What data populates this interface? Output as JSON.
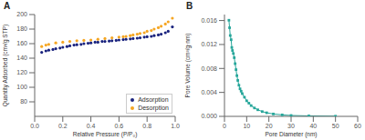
{
  "chart_data": [
    {
      "type": "scatter",
      "title": "A",
      "x_label": "Relative Pressure (P/P₀)",
      "y_label": "Quantity Adsorbed (cm³/g STP)",
      "xlim": [
        0.0,
        1.0
      ],
      "xticks": [
        {
          "value": 0.0,
          "label": "0.0"
        },
        0.2,
        0.4,
        0.6,
        0.8,
        {
          "value": 1.0,
          "label": "1.0"
        }
      ],
      "ylim": [
        60,
        200
      ],
      "yticks": [
        80,
        100,
        120,
        140,
        160,
        180,
        200
      ],
      "grid": false,
      "legend": "lower right",
      "series": [
        {
          "name": "Adsorption",
          "color": "#1a237e",
          "marker": "circle",
          "x": [
            0.05,
            0.08,
            0.1,
            0.13,
            0.15,
            0.18,
            0.2,
            0.23,
            0.25,
            0.28,
            0.3,
            0.33,
            0.35,
            0.38,
            0.4,
            0.43,
            0.45,
            0.48,
            0.5,
            0.53,
            0.55,
            0.58,
            0.6,
            0.63,
            0.65,
            0.68,
            0.7,
            0.73,
            0.75,
            0.78,
            0.8,
            0.83,
            0.85,
            0.88,
            0.9,
            0.93,
            0.95,
            0.98
          ],
          "values": [
            148,
            150,
            151,
            152,
            153,
            154,
            155,
            156,
            157,
            158,
            158.5,
            159,
            160,
            160.5,
            161,
            162,
            162,
            163,
            163,
            163.5,
            164,
            164.5,
            165,
            165.5,
            166,
            166.5,
            167,
            167.5,
            168,
            169,
            169.5,
            170,
            171,
            172,
            173,
            175,
            177,
            183
          ]
        },
        {
          "name": "Desorption",
          "color": "#f5a623",
          "marker": "circle",
          "x": [
            0.98,
            0.95,
            0.93,
            0.9,
            0.88,
            0.85,
            0.83,
            0.8,
            0.78,
            0.75,
            0.73,
            0.7,
            0.68,
            0.65,
            0.63,
            0.6,
            0.55,
            0.5,
            0.45,
            0.4,
            0.35,
            0.3,
            0.25,
            0.2,
            0.15,
            0.1,
            0.08,
            0.05
          ],
          "values": [
            195,
            190,
            187,
            184,
            182,
            180,
            178,
            177,
            175,
            174,
            173,
            172,
            171,
            170,
            169.5,
            169,
            168,
            167,
            166,
            165,
            164.5,
            164,
            163,
            162,
            161,
            159,
            158,
            156
          ]
        }
      ]
    },
    {
      "type": "line",
      "title": "B",
      "x_label": "Pore Diameter (nm)",
      "y_label": "Pore Volume (cm³/g·nm)",
      "xlim": [
        0,
        60
      ],
      "xticks": [
        0,
        10,
        20,
        30,
        40,
        50,
        60
      ],
      "ylim": [
        0.0,
        0.017
      ],
      "yticks": [
        {
          "value": 0.0,
          "label": "0.000"
        },
        0.004,
        0.008,
        0.012,
        0.016
      ],
      "grid": false,
      "color": "#26a69a",
      "marker": "square",
      "line_style": "solid",
      "x": [
        2.0,
        2.3,
        2.6,
        3.0,
        3.3,
        3.6,
        4.0,
        4.4,
        4.8,
        5.2,
        5.6,
        6.0,
        6.5,
        7.0,
        7.5,
        8.0,
        9.0,
        10.0,
        11.0,
        12.0,
        13.5,
        15.0,
        17.0,
        19.0,
        22.0,
        26.0,
        30.0,
        38.0,
        50.0
      ],
      "values": [
        0.01605,
        0.0148,
        0.0135,
        0.0128,
        0.0115,
        0.011,
        0.0105,
        0.0098,
        0.0088,
        0.0078,
        0.0068,
        0.006,
        0.0052,
        0.0046,
        0.0042,
        0.0038,
        0.0032,
        0.0026,
        0.0022,
        0.0018,
        0.0014,
        0.0011,
        0.0008,
        0.0006,
        0.0004,
        0.00025,
        0.00015,
        8e-05,
        3e-05
      ]
    }
  ]
}
